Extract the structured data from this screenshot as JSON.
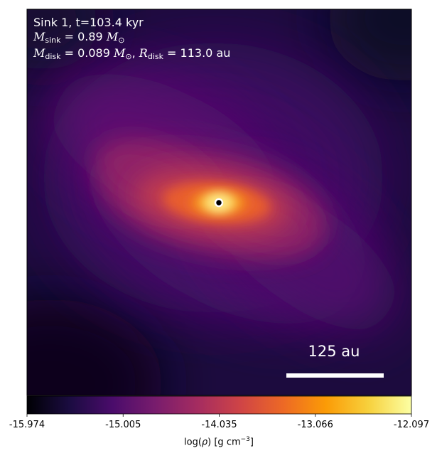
{
  "panel": {
    "title": "Sink 1, t=103.4 kyr",
    "msink_symbol": "M",
    "msink_sub": "sink",
    "msink_value": " = 0.89 ",
    "msink_unit_symbol": "M",
    "msink_unit_sub": "⊙",
    "mdisk_symbol": "M",
    "mdisk_sub": "disk",
    "mdisk_value": " = 0.089 ",
    "mdisk_unit_symbol": "M",
    "mdisk_unit_sub": "⊙",
    "rdisk_separator": ", ",
    "rdisk_symbol": "R",
    "rdisk_sub": "disk",
    "rdisk_value": " = 113.0 au",
    "scale_bar_label": "125 au"
  },
  "colorbar": {
    "colormap": "inferno",
    "label_prefix": "log(",
    "label_rho": "ρ",
    "label_mid": ") [g cm",
    "label_exp": "−3",
    "label_suffix": "]",
    "ticks": [
      "-15.974",
      "-15.005",
      "-14.035",
      "-13.066",
      "-12.097"
    ],
    "colors": [
      "#000004",
      "#1b0c41",
      "#4a0c6b",
      "#781c6d",
      "#a52c60",
      "#cf4446",
      "#ed6925",
      "#fb9b06",
      "#f7d13d",
      "#fcffa4"
    ]
  },
  "sink_marker": {
    "fill": "#000000",
    "ring": "#ffffff"
  }
}
